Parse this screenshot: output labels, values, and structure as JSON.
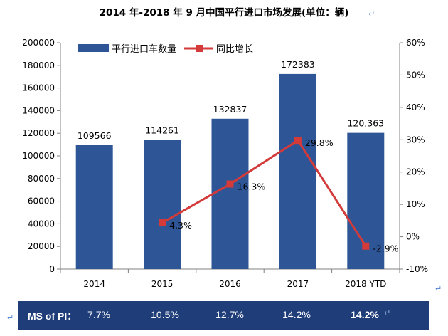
{
  "chart_data": {
    "type": "bar+line",
    "title": "2014 年-2018 年 9 月中国平行进口市场发展(单位：辆)",
    "categories": [
      "2014",
      "2015",
      "2016",
      "2017",
      "2018 YTD"
    ],
    "series": [
      {
        "name": "平行进口车数量",
        "kind": "bar",
        "axis": "left",
        "values": [
          109566,
          114261,
          132837,
          172383,
          120363
        ],
        "labels": [
          "109566",
          "114261",
          "132837",
          "172383",
          "120,363"
        ],
        "color": "#2e5596"
      },
      {
        "name": "同比增长",
        "kind": "line",
        "axis": "right",
        "values": [
          null,
          4.3,
          16.3,
          29.8,
          -2.9
        ],
        "labels": [
          "",
          "4.3%",
          "16.3%",
          "29.8%",
          "-2.9%"
        ],
        "color": "#d33a3a"
      }
    ],
    "y_left": {
      "min": 0,
      "max": 200000,
      "step": 20000,
      "ticks": [
        "0",
        "20000",
        "40000",
        "60000",
        "80000",
        "100000",
        "120000",
        "140000",
        "160000",
        "180000",
        "200000"
      ]
    },
    "y_right": {
      "min": -10,
      "max": 60,
      "step": 10,
      "ticks": [
        "-10%",
        "0%",
        "10%",
        "20%",
        "30%",
        "40%",
        "50%",
        "60%"
      ]
    },
    "legend": "top-left",
    "grid": false
  },
  "ms_band": {
    "label": "MS of PI：",
    "values": [
      "7.7%",
      "10.5%",
      "12.7%",
      "14.2%",
      "14.2%"
    ]
  },
  "edit_mark": "↵"
}
